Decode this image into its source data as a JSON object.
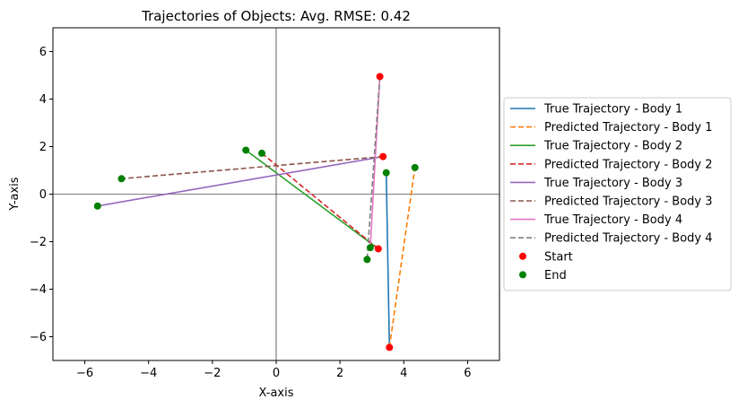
{
  "chart_data": {
    "type": "line",
    "title": "Trajectories of Objects: Avg. RMSE: 0.42",
    "xlabel": "X-axis",
    "ylabel": "Y-axis",
    "xlim": [
      -7,
      7
    ],
    "ylim": [
      -7,
      7
    ],
    "xticks": [
      -6,
      -4,
      -2,
      0,
      2,
      4,
      6
    ],
    "yticks": [
      -6,
      -4,
      -2,
      0,
      2,
      4,
      6
    ],
    "xtick_labels": [
      "−6",
      "−4",
      "−2",
      "0",
      "2",
      "4",
      "6"
    ],
    "ytick_labels": [
      "−6",
      "−4",
      "−2",
      "0",
      "2",
      "4",
      "6"
    ],
    "reference_lines": {
      "x": 0,
      "y": 0
    },
    "legend_position": "outside-right",
    "series": [
      {
        "name": "True Trajectory - Body 1",
        "style": "solid",
        "color": "#1f77b4",
        "x": [
          3.55,
          3.45
        ],
        "y": [
          -6.45,
          0.9
        ]
      },
      {
        "name": "Predicted Trajectory - Body 1",
        "style": "dashed",
        "color": "#ff7f0e",
        "x": [
          3.55,
          4.35
        ],
        "y": [
          -6.45,
          1.12
        ]
      },
      {
        "name": "True Trajectory - Body 2",
        "style": "solid",
        "color": "#2ca02c",
        "x": [
          3.2,
          -0.95
        ],
        "y": [
          -2.3,
          1.85
        ]
      },
      {
        "name": "Predicted Trajectory - Body 2",
        "style": "dashed",
        "color": "#d62728",
        "x": [
          3.2,
          -0.45
        ],
        "y": [
          -2.3,
          1.72
        ]
      },
      {
        "name": "True Trajectory - Body 3",
        "style": "solid",
        "color": "#9467bd",
        "x": [
          3.35,
          -5.6
        ],
        "y": [
          1.58,
          -0.5
        ]
      },
      {
        "name": "Predicted Trajectory - Body 3",
        "style": "dashed",
        "color": "#8c564b",
        "x": [
          3.35,
          -4.85
        ],
        "y": [
          1.58,
          0.65
        ]
      },
      {
        "name": "True Trajectory - Body 4",
        "style": "solid",
        "color": "#e377c2",
        "x": [
          3.25,
          2.95
        ],
        "y": [
          4.95,
          -2.25
        ]
      },
      {
        "name": "Predicted Trajectory - Body 4",
        "style": "dashed",
        "color": "#7f7f7f",
        "x": [
          3.25,
          2.85
        ],
        "y": [
          4.95,
          -2.75
        ]
      }
    ],
    "start_points": {
      "name": "Start",
      "color": "#ff0000",
      "x": [
        3.55,
        3.2,
        3.35,
        3.25
      ],
      "y": [
        -6.45,
        -2.3,
        1.58,
        4.95
      ]
    },
    "end_points": {
      "name": "End",
      "color": "#008000",
      "x": [
        3.45,
        4.35,
        -0.95,
        -0.45,
        -5.6,
        -4.85,
        2.95,
        2.85
      ],
      "y": [
        0.9,
        1.12,
        1.85,
        1.72,
        -0.5,
        0.65,
        -2.25,
        -2.75
      ]
    }
  }
}
